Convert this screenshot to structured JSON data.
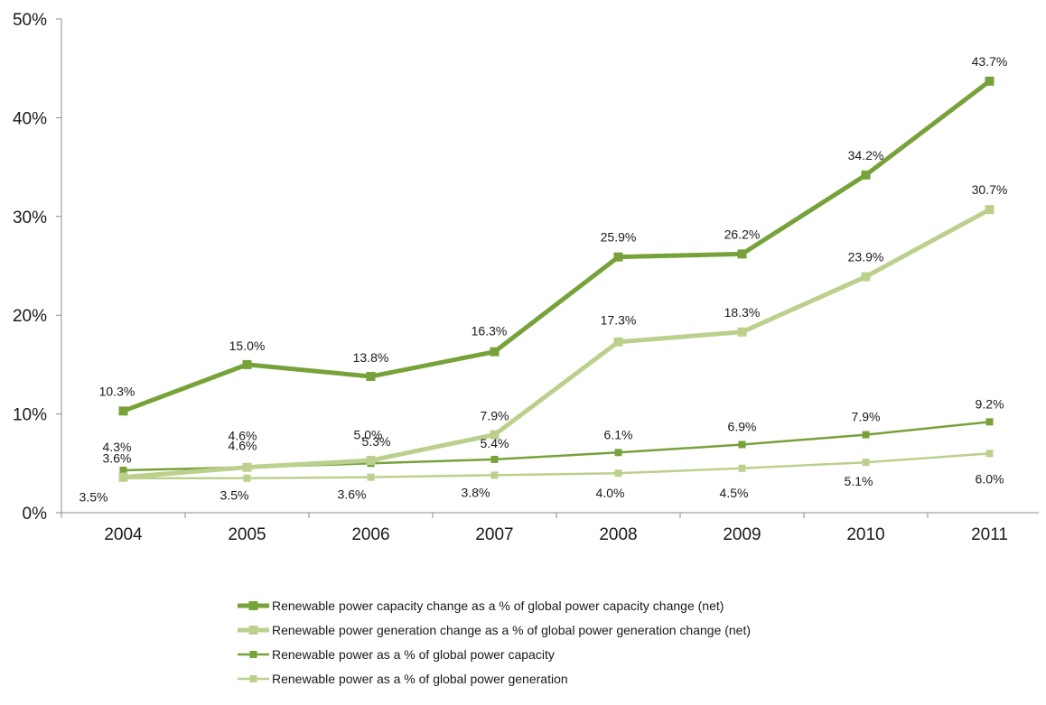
{
  "chart_data": {
    "type": "line",
    "title": "",
    "xlabel": "",
    "ylabel": "",
    "x": [
      "2004",
      "2005",
      "2006",
      "2007",
      "2008",
      "2009",
      "2010",
      "2011"
    ],
    "ylim": [
      0,
      50
    ],
    "yticks": [
      "0%",
      "10%",
      "20%",
      "30%",
      "40%",
      "50%"
    ],
    "grid": false,
    "legend_position": "bottom",
    "series": [
      {
        "name": "Renewable power capacity change as a % of global power capacity change (net)",
        "color": "#77a23a",
        "width": "thick",
        "values": [
          10.3,
          15.0,
          13.8,
          16.3,
          25.9,
          26.2,
          34.2,
          43.7
        ],
        "labels": [
          "10.3%",
          "15.0%",
          "13.8%",
          "16.3%",
          "25.9%",
          "26.2%",
          "34.2%",
          "43.7%"
        ]
      },
      {
        "name": "Renewable power generation change as a % of global power generation change (net)",
        "color": "#bcd08d",
        "width": "thick",
        "values": [
          3.6,
          4.6,
          5.3,
          7.9,
          17.3,
          18.3,
          23.9,
          30.7
        ],
        "labels": [
          "3.6%",
          "4.6%",
          "5.3%",
          "7.9%",
          "17.3%",
          "18.3%",
          "23.9%",
          "30.7%"
        ]
      },
      {
        "name": "Renewable power as a % of global power capacity",
        "color": "#77a23a",
        "width": "thin",
        "values": [
          4.3,
          4.6,
          5.0,
          5.4,
          6.1,
          6.9,
          7.9,
          9.2
        ],
        "labels": [
          "4.3%",
          "4.6%",
          "5.0%",
          "5.4%",
          "6.1%",
          "6.9%",
          "7.9%",
          "9.2%"
        ]
      },
      {
        "name": "Renewable power as a % of global power generation",
        "color": "#bcd08d",
        "width": "thin",
        "values": [
          3.5,
          3.5,
          3.6,
          3.8,
          4.0,
          4.5,
          5.1,
          6.0
        ],
        "labels": [
          "3.5%",
          "3.5%",
          "3.6%",
          "3.8%",
          "4.0%",
          "4.5%",
          "5.1%",
          "6.0%"
        ]
      }
    ]
  }
}
